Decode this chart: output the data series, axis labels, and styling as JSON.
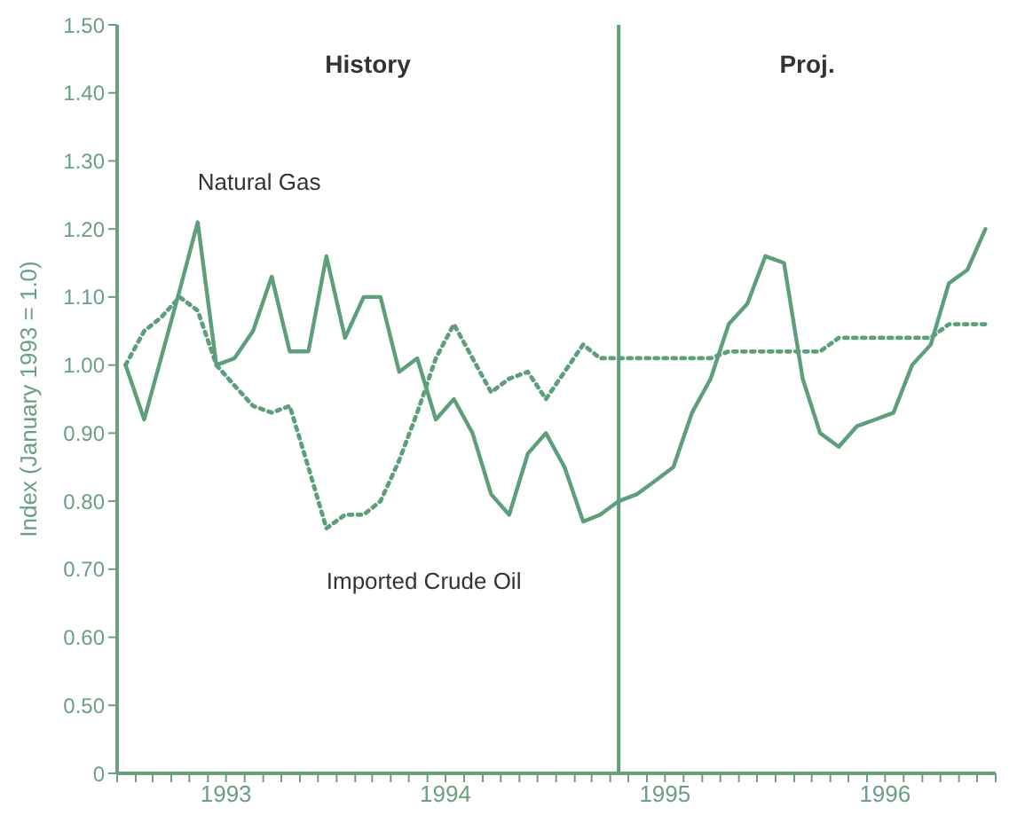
{
  "chart_data": {
    "type": "line",
    "ylabel": "Index (January 1993 = 1.0)",
    "x": [
      "1993-01-15",
      "1993-02-15",
      "1993-03-15",
      "1993-04-15",
      "1993-05-15",
      "1993-06-15",
      "1993-07-15",
      "1993-08-15",
      "1993-09-15",
      "1993-10-15",
      "1993-11-15",
      "1993-12-15",
      "1994-01-15",
      "1994-02-15",
      "1994-03-15",
      "1994-04-15",
      "1994-05-15",
      "1994-06-15",
      "1994-07-15",
      "1994-08-15",
      "1994-09-15",
      "1994-10-15",
      "1994-11-15",
      "1994-12-15",
      "1995-01-15",
      "1995-02-15",
      "1995-03-15",
      "1995-04-15",
      "1995-05-15",
      "1995-06-15",
      "1995-07-15",
      "1995-08-15",
      "1995-09-15",
      "1995-10-15",
      "1995-11-15",
      "1995-12-15",
      "1996-01-15",
      "1996-02-15",
      "1996-03-15",
      "1996-04-15",
      "1996-05-15",
      "1996-06-15",
      "1996-07-15",
      "1996-08-15",
      "1996-09-15",
      "1996-10-15",
      "1996-11-15",
      "1996-12-15"
    ],
    "series": [
      {
        "name": "Natural Gas",
        "color": "#5e9f7b",
        "line_style": "solid",
        "values": [
          1.0,
          0.92,
          1.01,
          1.11,
          1.21,
          1.0,
          1.01,
          1.05,
          1.13,
          1.02,
          1.02,
          1.16,
          1.04,
          1.1,
          1.1,
          0.99,
          1.01,
          0.92,
          0.95,
          0.9,
          0.81,
          0.78,
          0.87,
          0.9,
          0.85,
          0.77,
          0.78,
          0.8,
          0.81,
          0.83,
          0.85,
          0.93,
          0.98,
          1.06,
          1.09,
          1.16,
          1.15,
          0.98,
          0.9,
          0.88,
          0.91,
          0.92,
          0.93,
          1.0,
          1.03,
          1.12,
          1.14,
          1.2
        ]
      },
      {
        "name": "Imported Crude Oil",
        "color": "#5e9f7b",
        "line_style": "dotted",
        "values": [
          1.0,
          1.05,
          1.07,
          1.1,
          1.08,
          1.0,
          0.97,
          0.94,
          0.93,
          0.94,
          0.85,
          0.76,
          0.78,
          0.78,
          0.8,
          0.86,
          0.93,
          1.01,
          1.06,
          1.01,
          0.96,
          0.98,
          0.99,
          0.95,
          0.99,
          1.03,
          1.01,
          1.01,
          1.01,
          1.01,
          1.01,
          1.01,
          1.01,
          1.02,
          1.02,
          1.02,
          1.02,
          1.02,
          1.02,
          1.04,
          1.04,
          1.04,
          1.04,
          1.04,
          1.04,
          1.06,
          1.06,
          1.06
        ]
      }
    ],
    "xlim": [
      "1993-01-01",
      "1997-01-01"
    ],
    "xticks": [
      {
        "value": "1993-01-01",
        "label": null
      },
      {
        "value": "1993-02-01",
        "label": null
      },
      {
        "value": "1993-03-01",
        "label": null
      },
      {
        "value": "1993-04-01",
        "label": null
      },
      {
        "value": "1993-05-01",
        "label": null
      },
      {
        "value": "1993-06-01",
        "label": null
      },
      {
        "value": "1993-07-01",
        "label": "1993"
      },
      {
        "value": "1993-08-01",
        "label": null
      },
      {
        "value": "1993-09-01",
        "label": null
      },
      {
        "value": "1993-10-01",
        "label": null
      },
      {
        "value": "1993-11-01",
        "label": null
      },
      {
        "value": "1993-12-01",
        "label": null
      },
      {
        "value": "1994-01-01",
        "label": null
      },
      {
        "value": "1994-02-01",
        "label": null
      },
      {
        "value": "1994-03-01",
        "label": null
      },
      {
        "value": "1994-04-01",
        "label": null
      },
      {
        "value": "1994-05-01",
        "label": null
      },
      {
        "value": "1994-06-01",
        "label": null
      },
      {
        "value": "1994-07-01",
        "label": "1994"
      },
      {
        "value": "1994-08-01",
        "label": null
      },
      {
        "value": "1994-09-01",
        "label": null
      },
      {
        "value": "1994-10-01",
        "label": null
      },
      {
        "value": "1994-11-01",
        "label": null
      },
      {
        "value": "1994-12-01",
        "label": null
      },
      {
        "value": "1995-01-01",
        "label": null
      },
      {
        "value": "1995-02-01",
        "label": null
      },
      {
        "value": "1995-03-01",
        "label": null
      },
      {
        "value": "1995-04-01",
        "label": null
      },
      {
        "value": "1995-05-01",
        "label": null
      },
      {
        "value": "1995-06-01",
        "label": null
      },
      {
        "value": "1995-07-01",
        "label": "1995"
      },
      {
        "value": "1995-08-01",
        "label": null
      },
      {
        "value": "1995-09-01",
        "label": null
      },
      {
        "value": "1995-10-01",
        "label": null
      },
      {
        "value": "1995-11-01",
        "label": null
      },
      {
        "value": "1995-12-01",
        "label": null
      },
      {
        "value": "1996-01-01",
        "label": null
      },
      {
        "value": "1996-02-01",
        "label": null
      },
      {
        "value": "1996-03-01",
        "label": null
      },
      {
        "value": "1996-04-01",
        "label": null
      },
      {
        "value": "1996-05-01",
        "label": null
      },
      {
        "value": "1996-06-01",
        "label": null
      },
      {
        "value": "1996-07-01",
        "label": "1996"
      },
      {
        "value": "1996-08-01",
        "label": null
      },
      {
        "value": "1996-09-01",
        "label": null
      },
      {
        "value": "1996-10-01",
        "label": null
      },
      {
        "value": "1996-11-01",
        "label": null
      },
      {
        "value": "1996-12-01",
        "label": null
      },
      {
        "value": "1997-01-01",
        "label": null
      }
    ],
    "ylim": [
      0.4,
      1.5
    ],
    "yticks": [
      {
        "value": 0.4,
        "label": "0"
      },
      {
        "value": 0.5,
        "label": "0.50"
      },
      {
        "value": 0.6,
        "label": "0.60"
      },
      {
        "value": 0.7,
        "label": "0.70"
      },
      {
        "value": 0.8,
        "label": "0.80"
      },
      {
        "value": 0.9,
        "label": "0.90"
      },
      {
        "value": 1.0,
        "label": "1.00"
      },
      {
        "value": 1.1,
        "label": "1.10"
      },
      {
        "value": 1.2,
        "label": "1.20"
      },
      {
        "value": 1.3,
        "label": "1.30"
      },
      {
        "value": 1.4,
        "label": "1.40"
      },
      {
        "value": 1.5,
        "label": "1.50"
      }
    ],
    "ref_lines": [
      {
        "axis": "x",
        "value": "1995-04-15",
        "color": "#5e9f7b"
      }
    ],
    "annotations": [
      "History",
      "Proj."
    ],
    "grid": false,
    "legend": false,
    "marker": "none"
  }
}
